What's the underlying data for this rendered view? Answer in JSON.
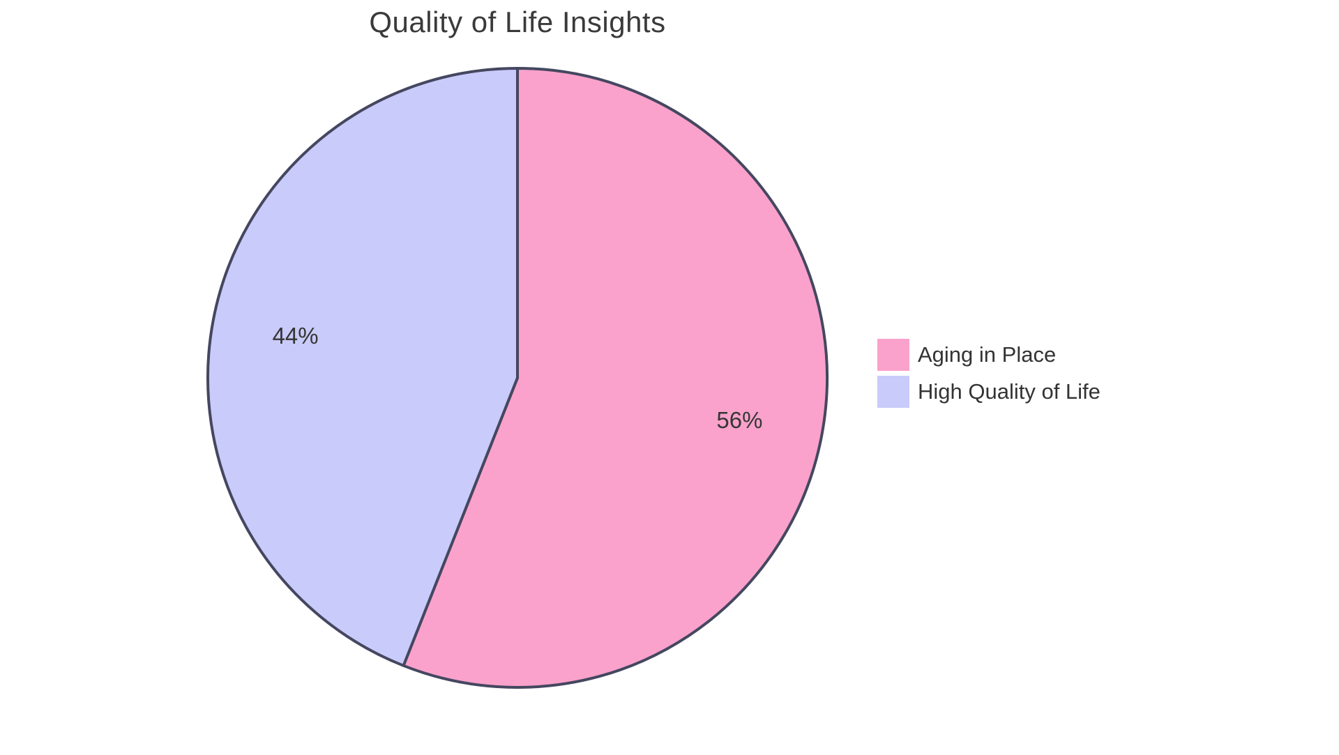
{
  "chart_data": {
    "type": "pie",
    "title": "Quality of Life Insights",
    "series": [
      {
        "name": "Aging in Place",
        "value": 56,
        "label": "56%",
        "color": "#FAA2CB"
      },
      {
        "name": "High Quality of Life",
        "value": 44,
        "label": "44%",
        "color": "#C9CBFA"
      }
    ],
    "start_angle_deg": 0,
    "direction": "clockwise",
    "legend_position": "right",
    "stroke_color": "#454760",
    "stroke_width": 4,
    "label_color": "#363636",
    "label_radius_ratio": 0.73,
    "title_color": "#3a3a3a",
    "background_color": "#ffffff"
  }
}
